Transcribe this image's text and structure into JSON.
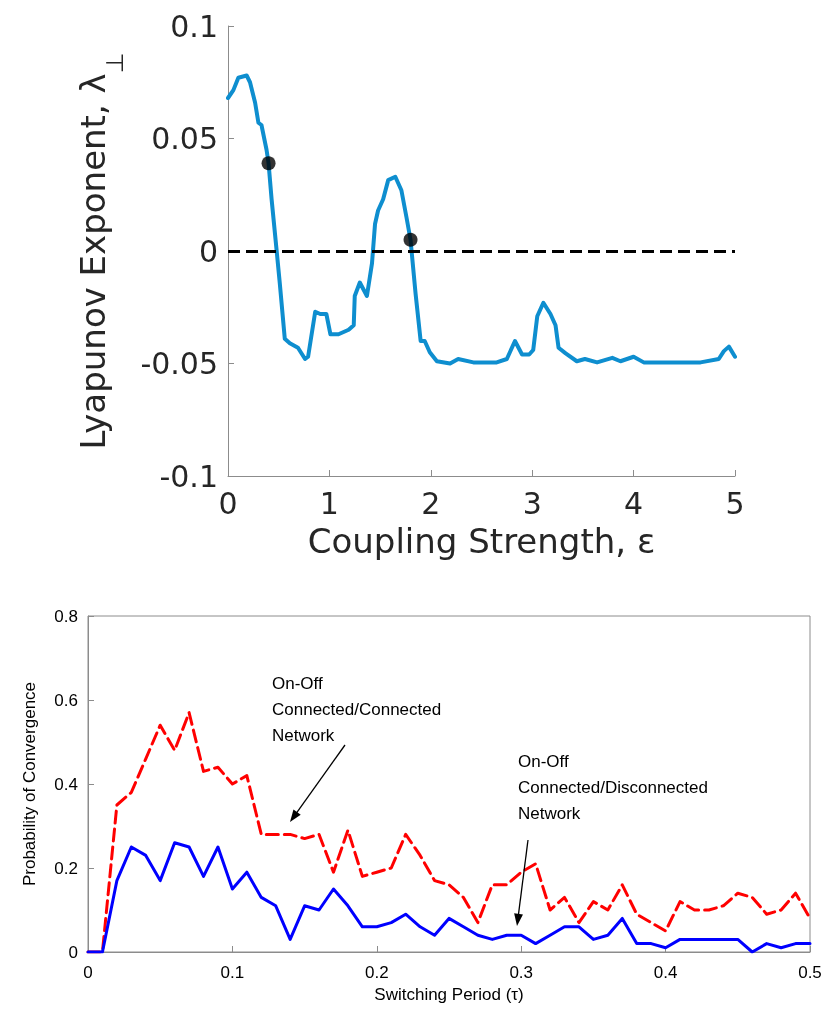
{
  "chart_data": [
    {
      "type": "line",
      "xlabel": "Coupling Strength, ε",
      "ylabel": "Lyapunov Exponent, λ$_{⊥}$",
      "xlim": [
        0,
        5
      ],
      "ylim": [
        -0.1,
        0.1
      ],
      "xticks": [
        0,
        1,
        2,
        3,
        4,
        5
      ],
      "yticks": [
        -0.1,
        -0.05,
        0,
        0.05,
        0.1
      ],
      "grid": false,
      "ref_lines": [
        {
          "axis": "y",
          "value": 0,
          "color": "#000000",
          "line_style": "dashed"
        }
      ],
      "series": [
        {
          "color": "#0e8ecf",
          "marker": "none",
          "line_style": "solid",
          "x": [
            0,
            0.053,
            0.102,
            0.184,
            0.217,
            0.267,
            0.3,
            0.33,
            0.38,
            0.4,
            0.43,
            0.48,
            0.51,
            0.56,
            0.61,
            0.69,
            0.76,
            0.79,
            0.86,
            0.91,
            0.97,
            1.01,
            1.09,
            1.19,
            1.24,
            1.25,
            1.3,
            1.37,
            1.42,
            1.45,
            1.48,
            1.53,
            1.58,
            1.65,
            1.71,
            1.76,
            1.8,
            1.85,
            1.9,
            1.94,
            1.99,
            2.06,
            2.19,
            2.27,
            2.42,
            2.65,
            2.75,
            2.83,
            2.9,
            2.97,
            3.01,
            3.05,
            3.11,
            3.18,
            3.23,
            3.26,
            3.33,
            3.44,
            3.52,
            3.64,
            3.79,
            3.87,
            4.0,
            4.1,
            4.4,
            4.66,
            4.84,
            4.89,
            4.94,
            5.0
          ],
          "values": [
            0.068,
            0.0715,
            0.077,
            0.078,
            0.075,
            0.066,
            0.057,
            0.056,
            0.045,
            0.039,
            0.023,
            0.0,
            -0.014,
            -0.039,
            -0.041,
            -0.043,
            -0.048,
            -0.047,
            -0.027,
            -0.028,
            -0.028,
            -0.037,
            -0.037,
            -0.035,
            -0.033,
            -0.02,
            -0.014,
            -0.02,
            -0.0055,
            0.012,
            0.018,
            0.023,
            0.0315,
            0.033,
            0.027,
            0.015,
            0.005,
            -0.019,
            -0.04,
            -0.04,
            -0.045,
            -0.049,
            -0.05,
            -0.048,
            -0.0495,
            -0.0495,
            -0.048,
            -0.04,
            -0.046,
            -0.046,
            -0.044,
            -0.029,
            -0.023,
            -0.028,
            -0.033,
            -0.043,
            -0.0455,
            -0.049,
            -0.048,
            -0.0495,
            -0.0475,
            -0.049,
            -0.047,
            -0.0495,
            -0.0495,
            -0.0495,
            -0.048,
            -0.0445,
            -0.0425,
            -0.047
          ]
        },
        {
          "type": "scatter",
          "color": "#000000",
          "marker": "circle",
          "x": [
            0.4,
            1.8
          ],
          "values": [
            0.039,
            0.005
          ]
        }
      ]
    },
    {
      "type": "line",
      "xlabel": "Switching Period (τ)",
      "ylabel": "Probability of Convergence",
      "xlim": [
        0,
        0.5
      ],
      "ylim": [
        0,
        0.8
      ],
      "xticks": [
        0,
        0.1,
        0.2,
        0.3,
        0.4,
        0.5
      ],
      "yticks": [
        0,
        0.2,
        0.4,
        0.6,
        0.8
      ],
      "grid": false,
      "marker": "none",
      "x": [
        0,
        0.01,
        0.02,
        0.03,
        0.04,
        0.05,
        0.06,
        0.07,
        0.08,
        0.09,
        0.1,
        0.11,
        0.12,
        0.13,
        0.14,
        0.15,
        0.16,
        0.17,
        0.18,
        0.19,
        0.2,
        0.21,
        0.22,
        0.23,
        0.24,
        0.25,
        0.26,
        0.27,
        0.28,
        0.29,
        0.3,
        0.31,
        0.32,
        0.33,
        0.34,
        0.35,
        0.36,
        0.37,
        0.38,
        0.39,
        0.4,
        0.41,
        0.42,
        0.43,
        0.44,
        0.45,
        0.46,
        0.47,
        0.48,
        0.49,
        0.5
      ],
      "annotations": [
        "On-Off\nConnected/Connected\nNetwork",
        "On-Off\nConnected/Disconnected\nNetwork"
      ],
      "series": [
        {
          "color": "#ff0000",
          "line_style": "dashed",
          "values": [
            0,
            0,
            0.35,
            0.38,
            0.46,
            0.54,
            0.48,
            0.57,
            0.43,
            0.44,
            0.4,
            0.42,
            0.28,
            0.28,
            0.28,
            0.27,
            0.28,
            0.19,
            0.29,
            0.18,
            0.19,
            0.2,
            0.28,
            0.23,
            0.17,
            0.16,
            0.13,
            0.07,
            0.16,
            0.16,
            0.19,
            0.21,
            0.1,
            0.13,
            0.07,
            0.12,
            0.1,
            0.16,
            0.09,
            0.07,
            0.05,
            0.12,
            0.1,
            0.1,
            0.11,
            0.14,
            0.13,
            0.09,
            0.1,
            0.14,
            0.08
          ]
        },
        {
          "color": "#0000ff",
          "line_style": "solid",
          "values": [
            0,
            0,
            0.17,
            0.25,
            0.23,
            0.17,
            0.26,
            0.25,
            0.18,
            0.25,
            0.15,
            0.19,
            0.13,
            0.11,
            0.03,
            0.11,
            0.1,
            0.15,
            0.11,
            0.06,
            0.06,
            0.07,
            0.09,
            0.06,
            0.04,
            0.08,
            0.06,
            0.04,
            0.03,
            0.04,
            0.04,
            0.02,
            0.04,
            0.06,
            0.06,
            0.03,
            0.04,
            0.08,
            0.02,
            0.02,
            0.01,
            0.03,
            0.03,
            0.03,
            0.03,
            0.03,
            0,
            0.02,
            0.01,
            0.02,
            0.02
          ]
        }
      ]
    }
  ]
}
